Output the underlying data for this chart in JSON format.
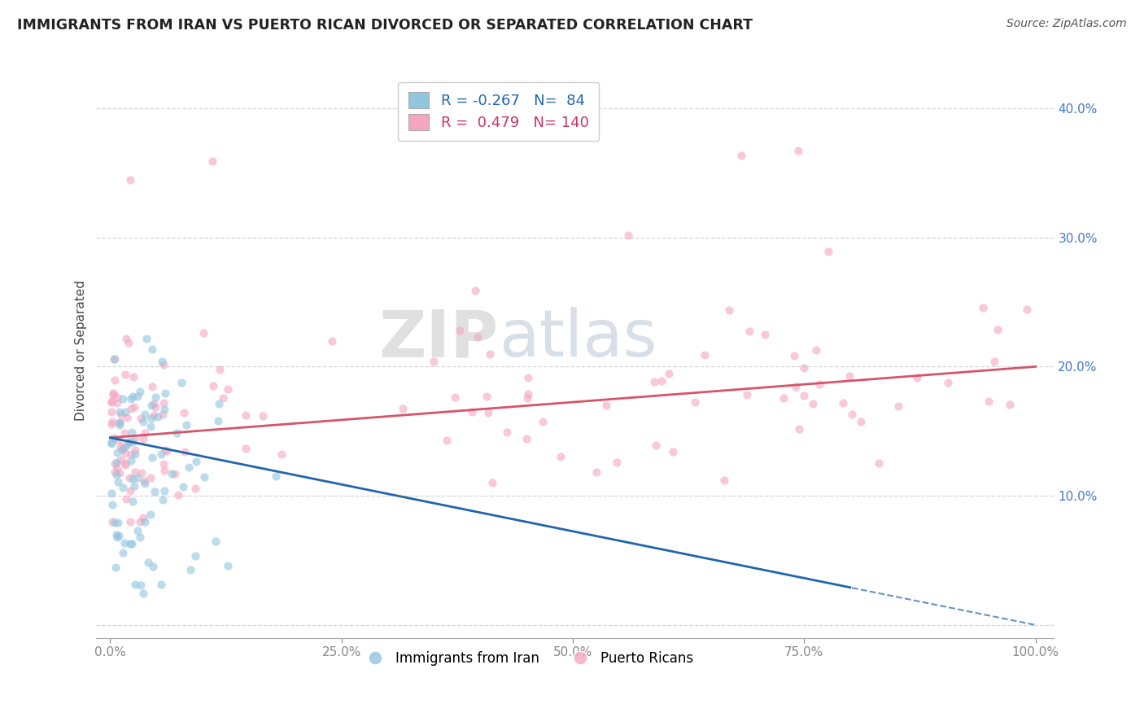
{
  "title": "IMMIGRANTS FROM IRAN VS PUERTO RICAN DIVORCED OR SEPARATED CORRELATION CHART",
  "source_text": "Source: ZipAtlas.com",
  "ylabel": "Divorced or Separated",
  "xlabel_iran": "Immigrants from Iran",
  "xlabel_pr": "Puerto Ricans",
  "legend_R_iran": "-0.267",
  "legend_N_iran": "84",
  "legend_R_pr": "0.479",
  "legend_N_pr": "140",
  "color_iran": "#92c5de",
  "color_pr": "#f4a6c0",
  "trend_color_iran": "#2166ac",
  "trend_color_pr": "#d6556a",
  "scatter_alpha": 0.6,
  "scatter_size": 55,
  "background_color": "#ffffff",
  "grid_color": "#cccccc",
  "ytick_color": "#4477cc",
  "xtick_color": "#555555"
}
